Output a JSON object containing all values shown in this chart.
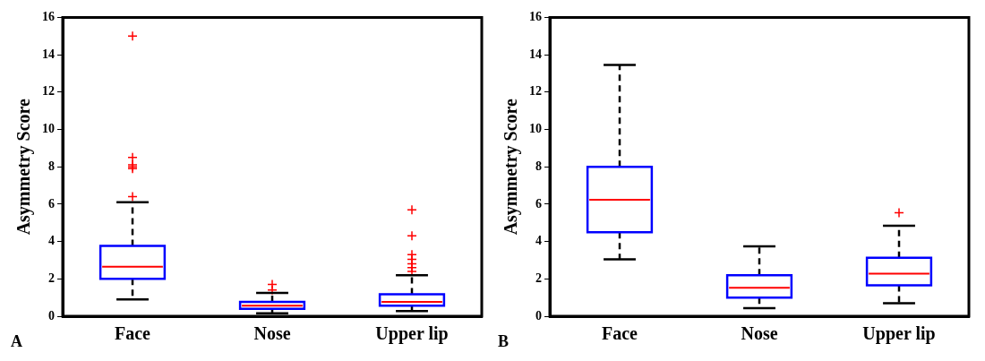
{
  "chart_data": [
    {
      "type": "box",
      "categories": [
        "Face",
        "Nose",
        "Upper lip"
      ],
      "ylabel": "Asymmetry Score",
      "ylim": [
        0,
        16
      ],
      "yticks": [
        0,
        2,
        4,
        6,
        8,
        10,
        12,
        14,
        16
      ],
      "grid": false,
      "annotations": [
        "A"
      ],
      "series": [
        {
          "color": "#0000ff",
          "boxes": [
            {
              "low": 0.9,
              "q1": 2.0,
              "median": 2.65,
              "q3": 3.77,
              "high": 6.1,
              "outliers": [
                15,
                8.5,
                8.1,
                8.0,
                7.9,
                6.4
              ]
            },
            {
              "low": 0.16,
              "q1": 0.4,
              "median": 0.56,
              "q3": 0.77,
              "high": 1.25,
              "outliers": [
                1.7,
                1.4
              ]
            },
            {
              "low": 0.27,
              "q1": 0.56,
              "median": 0.77,
              "q3": 1.17,
              "high": 2.2,
              "outliers": [
                5.7,
                4.3,
                3.3,
                3.05,
                2.8,
                2.6,
                2.4
              ]
            }
          ]
        }
      ]
    },
    {
      "type": "box",
      "categories": [
        "Face",
        "Nose",
        "Upper lip"
      ],
      "ylabel": "Asymmetry Score",
      "ylim": [
        0,
        16
      ],
      "yticks": [
        0,
        2,
        4,
        6,
        8,
        10,
        12,
        14,
        16
      ],
      "grid": false,
      "annotations": [
        "B"
      ],
      "series": [
        {
          "color": "#0000ff",
          "boxes": [
            {
              "low": 3.05,
              "q1": 4.5,
              "median": 6.23,
              "q3": 8.0,
              "high": 13.45
            },
            {
              "low": 0.43,
              "q1": 1.0,
              "median": 1.52,
              "q3": 2.2,
              "high": 3.74
            },
            {
              "low": 0.69,
              "q1": 1.65,
              "median": 2.28,
              "q3": 3.13,
              "high": 4.85,
              "outliers": [
                5.54
              ]
            }
          ]
        }
      ]
    }
  ]
}
